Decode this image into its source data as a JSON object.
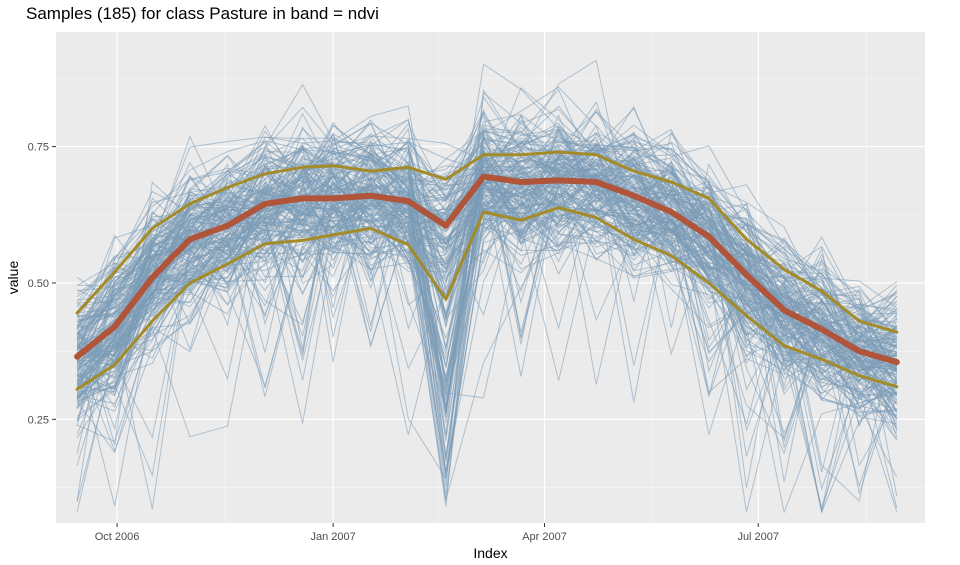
{
  "chart_data": {
    "type": "line",
    "title": "Samples (185) for class Pasture in band = ndvi",
    "xlabel": "Index",
    "ylabel": "value",
    "x_ticks": [
      "Oct 2006",
      "Jan 2007",
      "Apr 2007",
      "Jul 2007"
    ],
    "y_ticks": [
      0.25,
      0.5,
      0.75
    ],
    "xlim": [
      "2006-09-05",
      "2007-09-10"
    ],
    "ylim": [
      0.06,
      0.96
    ],
    "sample_count": 185,
    "x": [
      "2006-09-14",
      "2006-09-30",
      "2006-10-16",
      "2006-11-01",
      "2006-11-17",
      "2006-12-03",
      "2006-12-19",
      "2007-01-01",
      "2007-01-17",
      "2007-02-02",
      "2007-02-18",
      "2007-03-06",
      "2007-03-22",
      "2007-04-07",
      "2007-04-23",
      "2007-05-09",
      "2007-05-25",
      "2007-06-10",
      "2007-06-26",
      "2007-07-12",
      "2007-07-28",
      "2007-08-13",
      "2007-08-29"
    ],
    "sample_series_color": "#7a9ab6",
    "series": [
      {
        "name": "",
        "color": "#b0543a",
        "width": 6,
        "values": [
          0.365,
          0.42,
          0.51,
          0.58,
          0.605,
          0.645,
          0.655,
          0.655,
          0.66,
          0.65,
          0.605,
          0.695,
          0.685,
          0.688,
          0.685,
          0.66,
          0.63,
          0.585,
          0.515,
          0.45,
          0.415,
          0.375,
          0.355
        ]
      },
      {
        "name": "",
        "color": "#a48b2a",
        "width": 3,
        "values": [
          0.445,
          0.52,
          0.6,
          0.645,
          0.675,
          0.7,
          0.712,
          0.715,
          0.705,
          0.712,
          0.69,
          0.735,
          0.735,
          0.74,
          0.735,
          0.705,
          0.685,
          0.655,
          0.58,
          0.525,
          0.485,
          0.43,
          0.41
        ]
      },
      {
        "name": "",
        "color": "#a48b2a",
        "width": 3,
        "values": [
          0.305,
          0.35,
          0.43,
          0.5,
          0.535,
          0.572,
          0.578,
          0.588,
          0.6,
          0.57,
          0.47,
          0.63,
          0.615,
          0.638,
          0.62,
          0.58,
          0.55,
          0.5,
          0.44,
          0.385,
          0.36,
          0.33,
          0.31
        ]
      }
    ]
  }
}
